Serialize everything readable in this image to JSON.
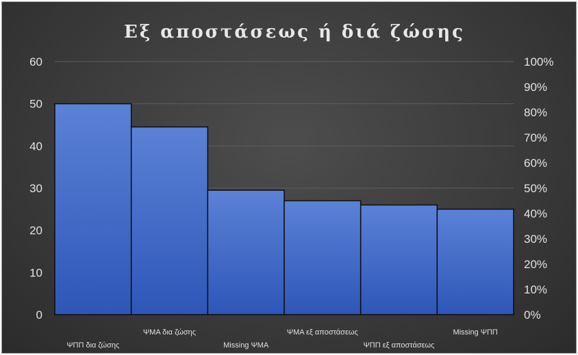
{
  "chart_data": {
    "type": "bar",
    "title": "Εξ αποστάσεως ή διά ζώσης",
    "categories": [
      "ΨΠΠ δια ζώσης",
      "ΨΜΑ δια ζώσης",
      "Missing ΨΜΑ",
      "ΨΜΑ εξ αποστάσεως",
      "ΨΠΠ εξ αποστάσεως",
      "Missing ΨΠΠ"
    ],
    "values": [
      50,
      44.5,
      29.5,
      27,
      26,
      25
    ],
    "ylim": [
      0,
      60
    ],
    "y_ticks": [
      "0",
      "10",
      "20",
      "30",
      "40",
      "50",
      "60"
    ],
    "y2lim": [
      0,
      1
    ],
    "y2_ticks": [
      "0%",
      "10%",
      "20%",
      "30%",
      "40%",
      "50%",
      "60%",
      "70%",
      "80%",
      "90%",
      "100%"
    ],
    "grid": true,
    "colors": {
      "bar_top": "#5b82d6",
      "bar_bottom": "#2e56b8",
      "bar_edge": "#0d0d0d"
    }
  }
}
